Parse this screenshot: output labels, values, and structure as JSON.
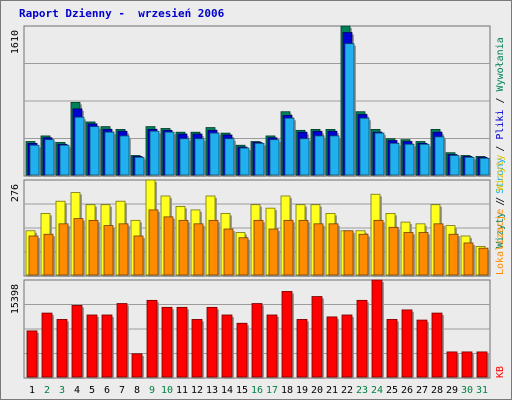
{
  "title": "Raport Dzienny -  wrzesień 2006",
  "colors": {
    "visits": "#00805a",
    "pages": "#0000d0",
    "files": "#20b0f0",
    "hits": "#ffff20",
    "sites": "#ff8c00",
    "kbytes": "#ff0000",
    "weekend_day": "#008040",
    "weekday": "#000000"
  },
  "right_legend": {
    "top": [
      {
        "text": "Wizyty",
        "color": "#00805a"
      },
      {
        "text": " / ",
        "color": "#000000"
      },
      {
        "text": "Strony",
        "color": "#20b0f0"
      },
      {
        "text": " / ",
        "color": "#000000"
      },
      {
        "text": "Pliki",
        "color": "#0000d0"
      },
      {
        "text": " / ",
        "color": "#000000"
      },
      {
        "text": "Wywołania",
        "color": "#00805a"
      }
    ],
    "middle": [
      {
        "text": "Lokalizacje",
        "color": "#ff8c00"
      },
      {
        "text": " / ",
        "color": "#000000"
      },
      {
        "text": "Wizyty",
        "color": "#e0c000"
      }
    ],
    "bottom": [
      {
        "text": "KB",
        "color": "#ff0000"
      }
    ]
  },
  "chart_data": [
    {
      "type": "bar",
      "panel": "top",
      "y_max_label": "1610",
      "ylim": [
        0,
        1610
      ],
      "categories": [
        "1",
        "2",
        "3",
        "4",
        "5",
        "6",
        "7",
        "8",
        "9",
        "10",
        "11",
        "12",
        "13",
        "14",
        "15",
        "16",
        "17",
        "18",
        "19",
        "20",
        "21",
        "22",
        "23",
        "24",
        "25",
        "26",
        "27",
        "28",
        "29",
        "30",
        "31"
      ],
      "weekend_days": [
        "2",
        "3",
        "9",
        "10",
        "16",
        "17",
        "23",
        "24",
        "30",
        "31"
      ],
      "series": [
        {
          "name": "Wywołania",
          "values": [
            370,
            430,
            360,
            790,
            580,
            530,
            500,
            220,
            530,
            510,
            470,
            470,
            520,
            460,
            330,
            370,
            430,
            690,
            490,
            500,
            500,
            1610,
            690,
            500,
            400,
            390,
            370,
            500,
            250,
            220,
            210
          ]
        },
        {
          "name": "Pliki",
          "values": [
            350,
            410,
            340,
            720,
            560,
            500,
            480,
            210,
            500,
            490,
            450,
            450,
            490,
            440,
            310,
            360,
            410,
            650,
            470,
            480,
            480,
            1540,
            660,
            470,
            380,
            370,
            350,
            470,
            230,
            210,
            200
          ]
        },
        {
          "name": "Strony",
          "values": [
            330,
            390,
            330,
            630,
            530,
            470,
            430,
            200,
            480,
            470,
            400,
            400,
            460,
            400,
            300,
            350,
            390,
            620,
            400,
            430,
            430,
            1420,
            620,
            460,
            350,
            340,
            340,
            420,
            220,
            200,
            190
          ]
        }
      ]
    },
    {
      "type": "bar",
      "panel": "middle",
      "y_max_label": "276",
      "ylim": [
        0,
        276
      ],
      "categories": [
        "1",
        "2",
        "3",
        "4",
        "5",
        "6",
        "7",
        "8",
        "9",
        "10",
        "11",
        "12",
        "13",
        "14",
        "15",
        "16",
        "17",
        "18",
        "19",
        "20",
        "21",
        "22",
        "23",
        "24",
        "25",
        "26",
        "27",
        "28",
        "29",
        "30",
        "31"
      ],
      "series": [
        {
          "name": "Wizyty",
          "values": [
            130,
            180,
            215,
            240,
            205,
            205,
            215,
            160,
            276,
            230,
            200,
            190,
            230,
            180,
            125,
            205,
            195,
            230,
            205,
            205,
            180,
            130,
            130,
            235,
            180,
            155,
            150,
            205,
            145,
            115,
            85
          ]
        },
        {
          "name": "Lokalizacje",
          "values": [
            115,
            120,
            150,
            165,
            160,
            145,
            150,
            115,
            190,
            170,
            160,
            150,
            160,
            135,
            110,
            160,
            135,
            160,
            160,
            150,
            150,
            130,
            120,
            160,
            140,
            125,
            125,
            150,
            120,
            95,
            80
          ]
        }
      ]
    },
    {
      "type": "bar",
      "panel": "bottom",
      "y_max_label": "15398",
      "ylim": [
        0,
        15398
      ],
      "categories": [
        "1",
        "2",
        "3",
        "4",
        "5",
        "6",
        "7",
        "8",
        "9",
        "10",
        "11",
        "12",
        "13",
        "14",
        "15",
        "16",
        "17",
        "18",
        "19",
        "20",
        "21",
        "22",
        "23",
        "24",
        "25",
        "26",
        "27",
        "28",
        "29",
        "30",
        "31"
      ],
      "series": [
        {
          "name": "KB",
          "values": [
            7400,
            10200,
            9200,
            11400,
            9900,
            9900,
            11700,
            3800,
            12200,
            11100,
            11100,
            9200,
            11100,
            9900,
            8600,
            11700,
            9900,
            13600,
            9200,
            12800,
            9600,
            9900,
            12200,
            15398,
            9200,
            10700,
            9100,
            10200,
            4100,
            4100,
            4100
          ]
        }
      ]
    }
  ]
}
